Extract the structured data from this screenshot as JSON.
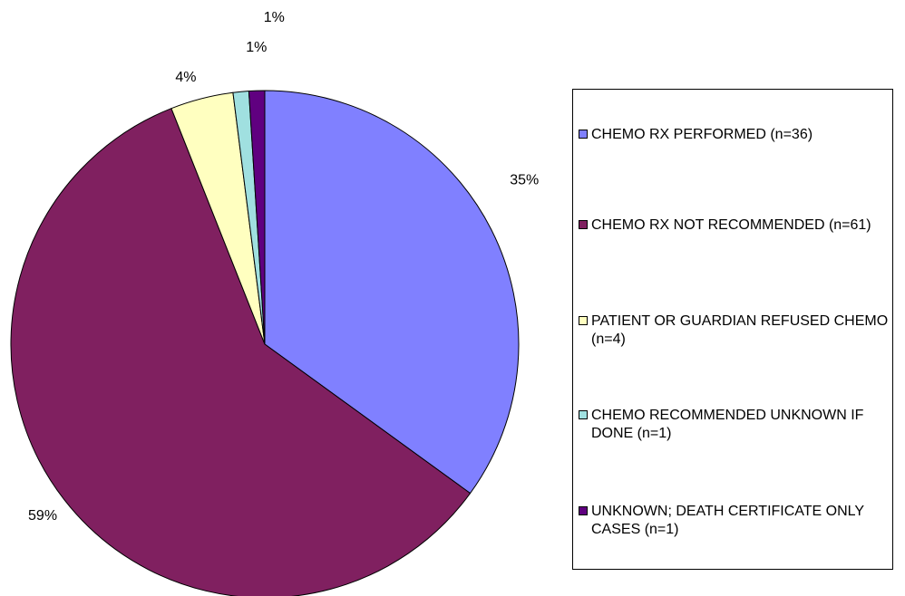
{
  "chart_data": {
    "type": "pie",
    "categories": [
      "CHEMO RX PERFORMED (n=36)",
      "CHEMO RX NOT RECOMMENDED (n=61)",
      "PATIENT OR GUARDIAN REFUSED CHEMO (n=4)",
      "CHEMO RECOMMENDED UNKNOWN IF DONE (n=1)",
      "UNKNOWN; DEATH CERTIFICATE ONLY CASES (n=1)"
    ],
    "values": [
      35,
      59,
      4,
      1,
      1
    ],
    "value_labels": [
      "35%",
      "59%",
      "4%",
      "1%",
      "1%"
    ],
    "colors": [
      "#8080ff",
      "#802060",
      "#ffffc0",
      "#a0e0e0",
      "#600080"
    ],
    "legend": "right"
  }
}
